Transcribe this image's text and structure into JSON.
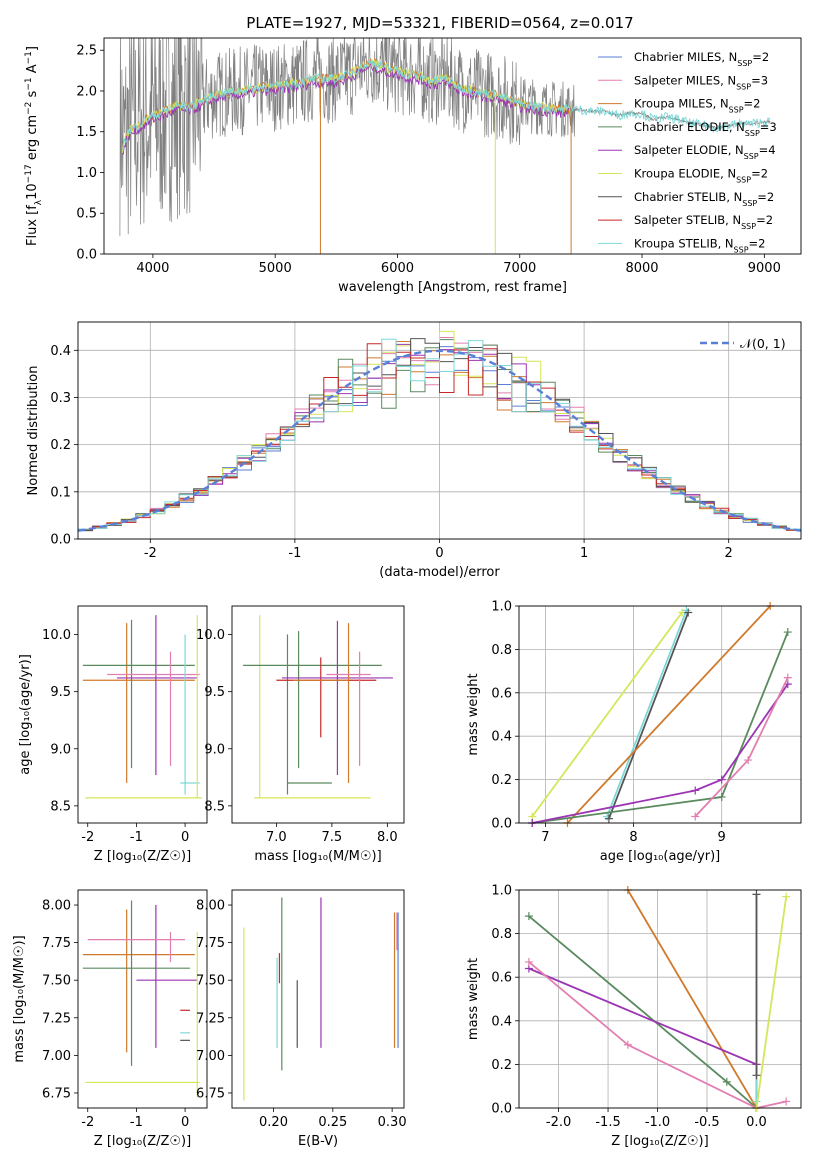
{
  "chart_data": [
    {
      "type": "line",
      "title": "PLATE=1927, MJD=53321, FIBERID=0564, z=0.017",
      "xlabel": "wavelength [Angstrom, rest frame]",
      "ylabel": "Flux [f_λ 10^-17 erg cm^-2 s^-1 A^-1]",
      "xlim": [
        3600,
        9300
      ],
      "ylim": [
        0,
        2.65
      ],
      "xticks": [
        4000,
        5000,
        6000,
        7000,
        8000,
        9000
      ],
      "yticks": [
        0.0,
        0.5,
        1.0,
        1.5,
        2.0,
        2.5
      ],
      "legend": "top-right",
      "series": [
        {
          "name": "Chabrier MILES, N_SSP=2",
          "color": "#5a7fd6"
        },
        {
          "name": "Salpeter MILES, N_SSP=3",
          "color": "#e27fb0"
        },
        {
          "name": "Kroupa MILES, N_SSP=2",
          "color": "#d07a2c"
        },
        {
          "name": "Chabrier ELODIE, N_SSP=3",
          "color": "#5a8a5e"
        },
        {
          "name": "Salpeter ELODIE, N_SSP=4",
          "color": "#9b35b3"
        },
        {
          "name": "Kroupa ELODIE, N_SSP=2",
          "color": "#d6e65a"
        },
        {
          "name": "Chabrier STELIB, N_SSP=2",
          "color": "#555555"
        },
        {
          "name": "Salpeter STELIB, N_SSP=2",
          "color": "#c62828"
        },
        {
          "name": "Kroupa STELIB, N_SSP=2",
          "color": "#7fd8d8"
        }
      ],
      "model_continuum": {
        "x": [
          3750,
          3800,
          3900,
          4000,
          4100,
          4200,
          4300,
          4400,
          4500,
          4600,
          4700,
          4800,
          4900,
          5000,
          5100,
          5200,
          5300,
          5400,
          5500,
          5600,
          5700,
          5800,
          5900,
          6000,
          6100,
          6200,
          6300,
          6400,
          6500,
          6600,
          6700,
          6800,
          6900,
          7000,
          7100,
          7200,
          7300,
          7400,
          7500,
          7600,
          7700,
          7800,
          7900,
          8000,
          8100,
          8200,
          8300,
          8400,
          8500,
          8600,
          8700,
          8800,
          8900,
          9000
        ],
        "y": [
          1.3,
          1.5,
          1.6,
          1.7,
          1.75,
          1.82,
          1.8,
          1.87,
          1.95,
          1.98,
          2.0,
          2.02,
          2.05,
          2.05,
          2.08,
          2.1,
          2.15,
          2.15,
          2.15,
          2.2,
          2.3,
          2.35,
          2.28,
          2.25,
          2.2,
          2.18,
          2.12,
          2.15,
          2.05,
          2.0,
          1.98,
          1.95,
          1.9,
          1.85,
          1.82,
          1.8,
          1.78,
          1.78,
          1.77,
          1.75,
          1.75,
          1.7,
          1.73,
          1.72,
          1.65,
          1.68,
          1.65,
          1.6,
          1.58,
          1.55,
          1.57,
          1.6,
          1.6,
          1.62
        ]
      },
      "data_spectrum_range": [
        3730,
        9050
      ]
    },
    {
      "type": "line",
      "title": "",
      "xlabel": "(data-model)/error",
      "ylabel": "Normed distribution",
      "xlim": [
        -2.5,
        2.5
      ],
      "ylim": [
        0,
        0.46
      ],
      "xticks": [
        -2,
        -1,
        0,
        1,
        2
      ],
      "yticks": [
        0.0,
        0.1,
        0.2,
        0.3,
        0.4
      ],
      "grid": true,
      "legend": "top-right",
      "series": [
        {
          "name": "𝒩(0, 1)",
          "color": "#5a7fd6",
          "style": "dashed",
          "function": "gaussian",
          "mean": 0,
          "sigma": 1
        }
      ],
      "histograms_overlaid": 9
    },
    {
      "type": "scatter",
      "title": "",
      "xlabel": "Z [log10(Z/Z☉)]",
      "ylabel": "age  [log10(age/yr)]",
      "xlim": [
        -2.2,
        0.45
      ],
      "ylim": [
        8.35,
        10.25
      ],
      "xticks": [
        -2,
        -1,
        0
      ],
      "yticks": [
        8.5,
        9.0,
        9.5,
        10.0
      ],
      "errorbars": [
        {
          "x": -1.2,
          "y": 9.6,
          "xerr": [
            0.9,
            1.4
          ],
          "yerr": [
            0.9,
            0.5
          ],
          "color": "#d07a2c"
        },
        {
          "x": -1.1,
          "y": 9.73,
          "xerr": [
            1.0,
            1.3
          ],
          "yerr": [
            0.9,
            0.4
          ],
          "color": "#5a8a5e"
        },
        {
          "x": -0.6,
          "y": 9.62,
          "xerr": [
            0.8,
            0.85
          ],
          "yerr": [
            0.85,
            0.55
          ],
          "color": "#9b35b3"
        },
        {
          "x": -0.3,
          "y": 9.65,
          "xerr": [
            1.3,
            0.6
          ],
          "yerr": [
            0.8,
            0.2
          ],
          "color": "#e27fb0"
        },
        {
          "x": 0.0,
          "y": 8.7,
          "xerr": [
            0.1,
            0.3
          ],
          "yerr": [
            0.1,
            1.3
          ],
          "color": "#7fd8d8"
        },
        {
          "x": 0.25,
          "y": 8.57,
          "xerr": [
            2.3,
            0.1
          ],
          "yerr": [
            0.0,
            1.6
          ],
          "color": "#d6e65a"
        }
      ]
    },
    {
      "type": "scatter",
      "title": "",
      "xlabel": "mass [log10(M/M☉)]",
      "ylabel": "",
      "xlim": [
        6.6,
        8.15
      ],
      "ylim": [
        8.35,
        10.25
      ],
      "xticks": [
        7.0,
        7.5,
        8.0
      ],
      "yticks": [
        8.5,
        9.0,
        9.5,
        10.0
      ],
      "errorbars": [
        {
          "x": 6.85,
          "y": 8.57,
          "xerr": [
            0.05,
            1.0
          ],
          "yerr": [
            0.0,
            1.6
          ],
          "color": "#d6e65a"
        },
        {
          "x": 7.1,
          "y": 8.7,
          "xerr": [
            0.0,
            0.4
          ],
          "yerr": [
            0.1,
            1.3
          ],
          "color": "#5a8a5e"
        },
        {
          "x": 7.2,
          "y": 9.73,
          "xerr": [
            0.5,
            0.75
          ],
          "yerr": [
            0.9,
            0.3
          ],
          "color": "#5a8a5e"
        },
        {
          "x": 7.4,
          "y": 9.6,
          "xerr": [
            0.4,
            0.5
          ],
          "yerr": [
            0.5,
            0.2
          ],
          "color": "#c62828"
        },
        {
          "x": 7.55,
          "y": 9.62,
          "xerr": [
            0.5,
            0.5
          ],
          "yerr": [
            0.85,
            0.5
          ],
          "color": "#9b35b3"
        },
        {
          "x": 7.65,
          "y": 9.6,
          "xerr": [
            0.5,
            0.0
          ],
          "yerr": [
            0.9,
            0.5
          ],
          "color": "#d07a2c"
        },
        {
          "x": 7.75,
          "y": 9.65,
          "xerr": [
            0.3,
            0.1
          ],
          "yerr": [
            0.8,
            0.2
          ],
          "color": "#e27fb0"
        }
      ]
    },
    {
      "type": "line",
      "title": "",
      "xlabel": "age  [log10(age/yr)]",
      "ylabel": "mass weight",
      "xlim": [
        6.7,
        9.9
      ],
      "ylim": [
        0,
        1.0
      ],
      "xticks": [
        7,
        8,
        9
      ],
      "yticks": [
        0.0,
        0.2,
        0.4,
        0.6,
        0.8,
        1.0
      ],
      "grid": true,
      "series": [
        {
          "color": "#d6e65a",
          "x": [
            6.85,
            8.55
          ],
          "y": [
            0.03,
            0.97
          ]
        },
        {
          "color": "#7fd8d8",
          "x": [
            7.7,
            8.6
          ],
          "y": [
            0.03,
            0.98
          ]
        },
        {
          "color": "#555555",
          "x": [
            7.72,
            8.62
          ],
          "y": [
            0.02,
            0.97
          ]
        },
        {
          "color": "#d07a2c",
          "x": [
            7.25,
            9.55
          ],
          "y": [
            0.0,
            1.0
          ]
        },
        {
          "color": "#5a8a5e",
          "x": [
            6.85,
            9.0,
            9.75
          ],
          "y": [
            0.0,
            0.12,
            0.88
          ]
        },
        {
          "color": "#9b35b3",
          "x": [
            6.85,
            8.7,
            9.0,
            9.75
          ],
          "y": [
            0.0,
            0.15,
            0.2,
            0.64
          ]
        },
        {
          "color": "#e27fb0",
          "x": [
            8.7,
            9.3,
            9.75
          ],
          "y": [
            0.03,
            0.29,
            0.67
          ]
        }
      ]
    },
    {
      "type": "scatter",
      "title": "",
      "xlabel": "Z [log10(Z/Z☉)]",
      "ylabel": "mass [log10(M/M☉)]",
      "xlim": [
        -2.2,
        0.45
      ],
      "ylim": [
        6.65,
        8.1
      ],
      "xticks": [
        -2,
        -1,
        0
      ],
      "yticks": [
        6.75,
        7.0,
        7.25,
        7.5,
        7.75,
        8.0
      ],
      "errorbars": [
        {
          "x": -1.2,
          "y": 7.67,
          "xerr": [
            0.9,
            1.4
          ],
          "yerr": [
            0.65,
            0.3
          ],
          "color": "#d07a2c"
        },
        {
          "x": -1.1,
          "y": 7.58,
          "xerr": [
            1.0,
            1.2
          ],
          "yerr": [
            0.65,
            0.45
          ],
          "color": "#5a8a5e"
        },
        {
          "x": -0.6,
          "y": 7.5,
          "xerr": [
            0.4,
            0.85
          ],
          "yerr": [
            0.45,
            0.5
          ],
          "color": "#9b35b3"
        },
        {
          "x": -0.3,
          "y": 7.77,
          "xerr": [
            1.7,
            0.3
          ],
          "yerr": [
            0.15,
            0.05
          ],
          "color": "#e27fb0"
        },
        {
          "x": 0.0,
          "y": 7.3,
          "xerr": [
            0.1,
            0.1
          ],
          "yerr": [
            0.0,
            0.0
          ],
          "color": "#c62828"
        },
        {
          "x": 0.0,
          "y": 7.15,
          "xerr": [
            0.1,
            0.1
          ],
          "yerr": [
            0.0,
            0.0
          ],
          "color": "#7fd8d8"
        },
        {
          "x": 0.0,
          "y": 7.1,
          "xerr": [
            0.1,
            0.1
          ],
          "yerr": [
            0.0,
            0.0
          ],
          "color": "#555555"
        },
        {
          "x": 0.25,
          "y": 6.82,
          "xerr": [
            2.3,
            0.05
          ],
          "yerr": [
            0.1,
            1.0
          ],
          "color": "#d6e65a"
        }
      ]
    },
    {
      "type": "scatter",
      "title": "",
      "xlabel": "E(B-V)",
      "ylabel": "",
      "xlim": [
        0.165,
        0.31
      ],
      "ylim": [
        6.65,
        8.1
      ],
      "xticks": [
        0.2,
        0.25,
        0.3
      ],
      "yticks": [
        6.75,
        7.0,
        7.25,
        7.5,
        7.75,
        8.0
      ],
      "errorbars": [
        {
          "x": 0.175,
          "y": 7.3,
          "yerr": [
            0.6,
            0.55
          ],
          "color": "#d6e65a"
        },
        {
          "x": 0.203,
          "y": 7.4,
          "yerr": [
            0.35,
            0.25
          ],
          "color": "#7fd8d8"
        },
        {
          "x": 0.205,
          "y": 7.58,
          "yerr": [
            0.1,
            0.1
          ],
          "color": "#c62828"
        },
        {
          "x": 0.207,
          "y": 7.5,
          "yerr": [
            0.6,
            0.55
          ],
          "color": "#5a8a5e"
        },
        {
          "x": 0.22,
          "y": 7.3,
          "yerr": [
            0.25,
            0.2
          ],
          "color": "#555555"
        },
        {
          "x": 0.24,
          "y": 7.5,
          "yerr": [
            0.45,
            0.55
          ],
          "color": "#9b35b3"
        },
        {
          "x": 0.302,
          "y": 7.5,
          "yerr": [
            0.45,
            0.45
          ],
          "color": "#d07a2c"
        },
        {
          "x": 0.304,
          "y": 7.75,
          "yerr": [
            0.05,
            0.2
          ],
          "color": "#e27fb0"
        },
        {
          "x": 0.305,
          "y": 7.4,
          "yerr": [
            0.35,
            0.55
          ],
          "color": "#5a7fd6"
        }
      ]
    },
    {
      "type": "line",
      "title": "",
      "xlabel": "Z [log10(Z/Z☉)]",
      "ylabel": "mass weight",
      "xlim": [
        -2.4,
        0.45
      ],
      "ylim": [
        0,
        1.0
      ],
      "xticks": [
        -2.0,
        -1.5,
        -1.0,
        -0.5,
        0.0
      ],
      "yticks": [
        0.0,
        0.2,
        0.4,
        0.6,
        0.8,
        1.0
      ],
      "grid": true,
      "series": [
        {
          "color": "#d07a2c",
          "x": [
            -1.3,
            0.0
          ],
          "y": [
            1.0,
            0.0
          ]
        },
        {
          "color": "#5a8a5e",
          "x": [
            -2.3,
            -0.3,
            0.0
          ],
          "y": [
            0.88,
            0.12,
            0.0
          ]
        },
        {
          "color": "#9b35b3",
          "x": [
            -2.3,
            0.0,
            0.0
          ],
          "y": [
            0.64,
            0.2,
            0.0
          ]
        },
        {
          "color": "#e27fb0",
          "x": [
            -2.3,
            -1.3,
            0.0,
            0.3
          ],
          "y": [
            0.67,
            0.29,
            0.0,
            0.03
          ]
        },
        {
          "color": "#7fd8d8",
          "x": [
            0.0,
            0.0
          ],
          "y": [
            0.03,
            0.98
          ]
        },
        {
          "color": "#d6e65a",
          "x": [
            0.0,
            0.3
          ],
          "y": [
            0.0,
            0.97
          ]
        },
        {
          "color": "#555555",
          "x": [
            0.0,
            0.0
          ],
          "y": [
            0.15,
            0.98
          ]
        }
      ]
    }
  ],
  "legend_hist": "𝒩(0, 1)"
}
